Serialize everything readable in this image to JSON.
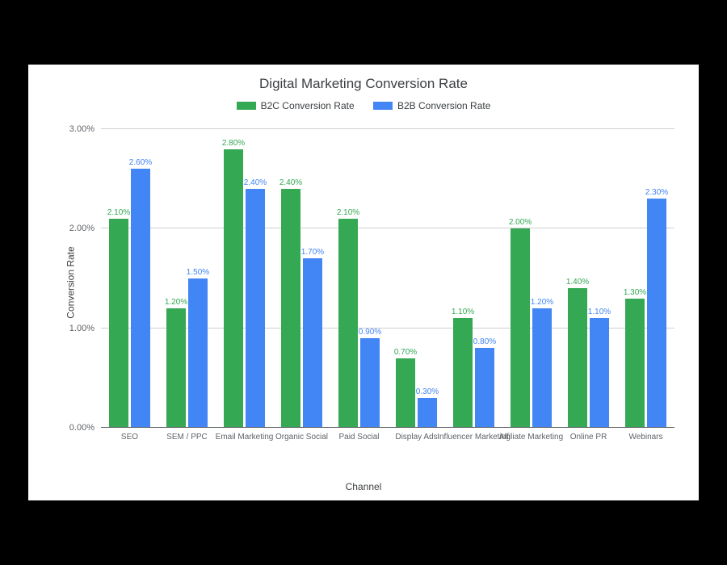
{
  "chart": {
    "type": "bar",
    "title": "Digital Marketing Conversion Rate",
    "title_fontsize": 17,
    "title_color": "#3c4043",
    "xaxis_title": "Channel",
    "yaxis_title": "Conversion Rate",
    "axis_label_fontsize": 12,
    "axis_label_color": "#3c4043",
    "tick_fontsize": 11,
    "tick_color": "#5f6368",
    "value_label_fontsize": 10,
    "background_color": "#ffffff",
    "page_background": "#000000",
    "grid_color": "#d0d0d0",
    "baseline_color": "#5f6368",
    "ylim": [
      0,
      3.0
    ],
    "yticks": [
      "0.00%",
      "1.00%",
      "2.00%",
      "3.00%"
    ],
    "ytick_values": [
      0,
      1.0,
      2.0,
      3.0
    ],
    "bar_width_ratio": 0.34,
    "group_gap_ratio": 0.04,
    "legend": {
      "position": "top",
      "fontsize": 12,
      "items": [
        {
          "label": "B2C Conversion Rate",
          "color": "#34a853"
        },
        {
          "label": "B2B Conversion Rate",
          "color": "#4285f4"
        }
      ]
    },
    "categories": [
      "SEO",
      "SEM / PPC",
      "Email Marketing",
      "Organic Social",
      "Paid Social",
      "Display Ads",
      "Influencer Marketing",
      "Affiliate Marketing",
      "Online PR",
      "Webinars"
    ],
    "series": [
      {
        "name": "B2C Conversion Rate",
        "color": "#34a853",
        "values": [
          2.1,
          1.2,
          2.8,
          2.4,
          2.1,
          0.7,
          1.1,
          2.0,
          1.4,
          1.3
        ],
        "labels": [
          "2.10%",
          "1.20%",
          "2.80%",
          "2.40%",
          "2.10%",
          "0.70%",
          "1.10%",
          "2.00%",
          "1.40%",
          "1.30%"
        ]
      },
      {
        "name": "B2B Conversion Rate",
        "color": "#4285f4",
        "values": [
          2.6,
          1.5,
          2.4,
          1.7,
          0.9,
          0.3,
          0.8,
          1.2,
          1.1,
          2.3
        ],
        "labels": [
          "2.60%",
          "1.50%",
          "2.40%",
          "1.70%",
          "0.90%",
          "0.30%",
          "0.80%",
          "1.20%",
          "1.10%",
          "2.30%"
        ]
      }
    ]
  }
}
